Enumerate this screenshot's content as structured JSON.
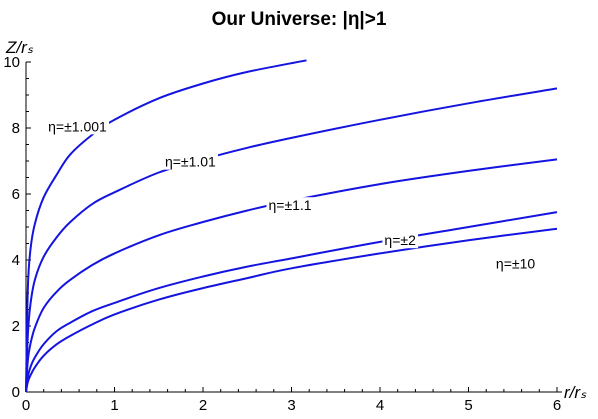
{
  "chart_data": {
    "type": "line",
    "title": "Our Universe: |η|>1",
    "xlabel": "r/rₛ",
    "ylabel": "Z/rₛ",
    "xlim": [
      0,
      6
    ],
    "ylim": [
      0,
      10
    ],
    "xticks": [
      0,
      1,
      2,
      3,
      4,
      5,
      6
    ],
    "yticks": [
      0,
      2,
      4,
      6,
      8,
      10
    ],
    "grid": false,
    "legend": "none",
    "line_color": "#1414e0",
    "series": [
      {
        "name": "η=±1.001",
        "x": [
          0,
          0.02,
          0.05,
          0.1,
          0.2,
          0.35,
          0.5,
          0.75,
          1.0,
          1.5,
          2.0,
          2.5,
          3.17
        ],
        "y": [
          0,
          3.1,
          4.3,
          5.1,
          5.9,
          6.6,
          7.2,
          7.8,
          8.25,
          8.9,
          9.35,
          9.7,
          10.05
        ]
      },
      {
        "name": "η=±1.01",
        "x": [
          0,
          0.02,
          0.05,
          0.1,
          0.2,
          0.35,
          0.5,
          0.75,
          1.0,
          1.5,
          2.0,
          2.5,
          3.0,
          4.0,
          5.0,
          6.0
        ],
        "y": [
          0,
          1.7,
          2.65,
          3.4,
          4.1,
          4.7,
          5.15,
          5.7,
          6.05,
          6.65,
          7.05,
          7.4,
          7.7,
          8.25,
          8.75,
          9.2
        ]
      },
      {
        "name": "η=±1.1",
        "x": [
          0,
          0.02,
          0.05,
          0.1,
          0.2,
          0.35,
          0.5,
          0.75,
          1.0,
          1.5,
          2.0,
          2.5,
          3.0,
          4.0,
          5.0,
          6.0
        ],
        "y": [
          0,
          0.95,
          1.45,
          1.95,
          2.55,
          3.05,
          3.4,
          3.85,
          4.2,
          4.75,
          5.15,
          5.5,
          5.8,
          6.3,
          6.7,
          7.05
        ]
      },
      {
        "name": "η=±2",
        "x": [
          0,
          0.02,
          0.05,
          0.1,
          0.2,
          0.35,
          0.5,
          0.75,
          1.0,
          1.5,
          2.0,
          2.5,
          3.0,
          4.0,
          5.0,
          6.0
        ],
        "y": [
          0,
          0.45,
          0.75,
          1.05,
          1.45,
          1.85,
          2.1,
          2.45,
          2.7,
          3.15,
          3.5,
          3.8,
          4.05,
          4.55,
          5.0,
          5.45
        ]
      },
      {
        "name": "η=±10",
        "x": [
          0,
          0.02,
          0.05,
          0.1,
          0.2,
          0.35,
          0.5,
          0.75,
          1.0,
          1.5,
          2.0,
          2.5,
          3.0,
          4.0,
          5.0,
          6.0
        ],
        "y": [
          0,
          0.3,
          0.5,
          0.75,
          1.1,
          1.45,
          1.7,
          2.05,
          2.35,
          2.8,
          3.15,
          3.45,
          3.75,
          4.2,
          4.6,
          4.95
        ]
      }
    ],
    "curve_labels": [
      {
        "text": "η=±1.001",
        "x": 0.25,
        "y": 8.05
      },
      {
        "text": "η=±1.01",
        "x": 1.57,
        "y": 6.98
      },
      {
        "text": "η=±1.1",
        "x": 2.74,
        "y": 5.66
      },
      {
        "text": "η=±2",
        "x": 4.05,
        "y": 4.6
      },
      {
        "text": "η=±10",
        "x": 5.31,
        "y": 3.9
      }
    ]
  }
}
